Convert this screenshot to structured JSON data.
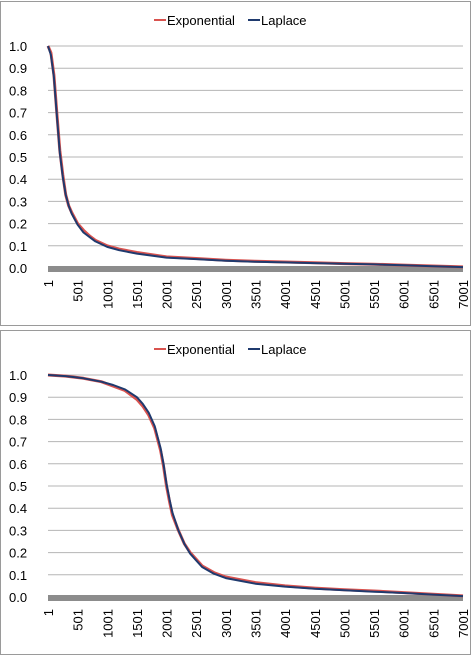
{
  "chart_data": [
    {
      "type": "line",
      "x_tick_labels": [
        "1",
        "501",
        "1001",
        "1501",
        "2001",
        "2501",
        "3001",
        "3501",
        "4001",
        "4501",
        "5001",
        "5501",
        "6001",
        "6501",
        "7001"
      ],
      "y_tick_labels": [
        "1.0",
        "0.9",
        "0.8",
        "0.7",
        "0.6",
        "0.5",
        "0.4",
        "0.3",
        "0.2",
        "0.1",
        "0.0"
      ],
      "xlim": [
        1,
        7001
      ],
      "ylim": [
        0,
        1
      ],
      "grid": true,
      "legend_position": "top-center",
      "series": [
        {
          "name": "Exponential",
          "color": "#d9534f",
          "x": [
            1,
            50,
            100,
            150,
            200,
            250,
            300,
            350,
            400,
            500,
            600,
            700,
            800,
            1000,
            1200,
            1500,
            2000,
            2500,
            3000,
            3500,
            4000,
            4500,
            5000,
            5500,
            6000,
            6500,
            7001
          ],
          "y": [
            1.0,
            0.97,
            0.87,
            0.7,
            0.53,
            0.42,
            0.33,
            0.28,
            0.25,
            0.2,
            0.17,
            0.145,
            0.125,
            0.1,
            0.085,
            0.07,
            0.05,
            0.043,
            0.035,
            0.03,
            0.027,
            0.024,
            0.02,
            0.017,
            0.013,
            0.009,
            0.005
          ]
        },
        {
          "name": "Laplace",
          "color": "#1f3a6e",
          "x": [
            1,
            50,
            100,
            150,
            200,
            250,
            300,
            350,
            400,
            500,
            600,
            700,
            800,
            1000,
            1200,
            1500,
            2000,
            2500,
            3000,
            3500,
            4000,
            4500,
            5000,
            5500,
            6000,
            6500,
            7001
          ],
          "y": [
            1.0,
            0.96,
            0.86,
            0.69,
            0.52,
            0.41,
            0.33,
            0.28,
            0.245,
            0.195,
            0.16,
            0.14,
            0.12,
            0.095,
            0.08,
            0.065,
            0.047,
            0.04,
            0.033,
            0.028,
            0.025,
            0.022,
            0.019,
            0.016,
            0.012,
            0.008,
            0.004
          ]
        }
      ]
    },
    {
      "type": "line",
      "x_tick_labels": [
        "1",
        "501",
        "1001",
        "1501",
        "2001",
        "2501",
        "3001",
        "3501",
        "4001",
        "4501",
        "5001",
        "5501",
        "6001",
        "6501",
        "7001"
      ],
      "y_tick_labels": [
        "1.0",
        "0.9",
        "0.8",
        "0.7",
        "0.6",
        "0.5",
        "0.4",
        "0.3",
        "0.2",
        "0.1",
        "0.0"
      ],
      "xlim": [
        1,
        7001
      ],
      "ylim": [
        0,
        1
      ],
      "grid": true,
      "legend_position": "top-center",
      "series": [
        {
          "name": "Exponential",
          "color": "#d9534f",
          "x": [
            1,
            300,
            600,
            900,
            1100,
            1300,
            1500,
            1600,
            1700,
            1800,
            1900,
            1950,
            2000,
            2050,
            2100,
            2200,
            2300,
            2400,
            2500,
            2600,
            2800,
            3000,
            3500,
            4000,
            4500,
            5000,
            5500,
            6000,
            6500,
            7001
          ],
          "y": [
            1.0,
            0.995,
            0.985,
            0.97,
            0.95,
            0.93,
            0.89,
            0.86,
            0.82,
            0.76,
            0.66,
            0.59,
            0.5,
            0.43,
            0.37,
            0.3,
            0.24,
            0.2,
            0.17,
            0.14,
            0.11,
            0.09,
            0.065,
            0.05,
            0.04,
            0.033,
            0.027,
            0.02,
            0.012,
            0.005
          ]
        },
        {
          "name": "Laplace",
          "color": "#1f3a6e",
          "x": [
            1,
            300,
            600,
            900,
            1100,
            1300,
            1500,
            1600,
            1700,
            1800,
            1900,
            1950,
            2000,
            2050,
            2100,
            2200,
            2300,
            2400,
            2500,
            2600,
            2800,
            3000,
            3500,
            4000,
            4500,
            5000,
            5500,
            6000,
            6500,
            7001
          ],
          "y": [
            1.0,
            0.995,
            0.985,
            0.97,
            0.955,
            0.935,
            0.9,
            0.87,
            0.83,
            0.77,
            0.67,
            0.6,
            0.51,
            0.44,
            0.38,
            0.3,
            0.24,
            0.195,
            0.165,
            0.135,
            0.105,
            0.085,
            0.06,
            0.047,
            0.037,
            0.03,
            0.024,
            0.018,
            0.011,
            0.004
          ]
        }
      ]
    }
  ]
}
